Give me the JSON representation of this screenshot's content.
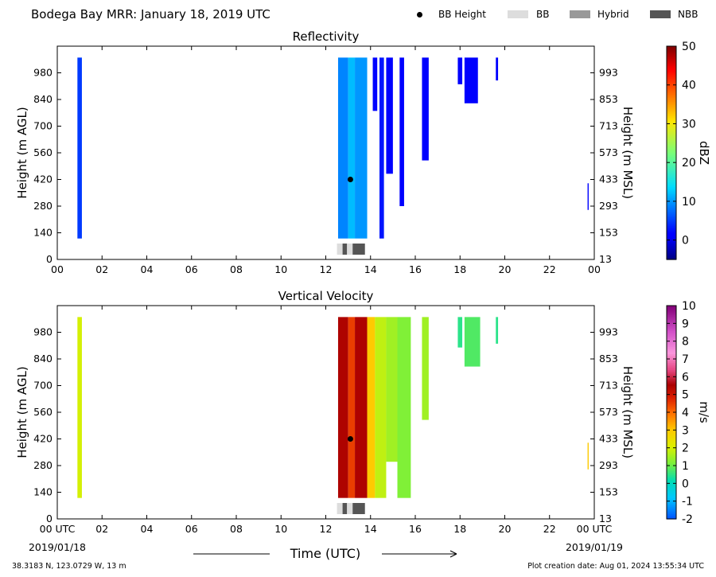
{
  "header": {
    "title": "Bodega Bay MRR:  January 18, 2019 UTC",
    "legend": [
      {
        "label": "BB Height",
        "marker": "dot",
        "color": "#000000"
      },
      {
        "label": "BB",
        "marker": "box",
        "color": "#dddddd"
      },
      {
        "label": "Hybrid",
        "marker": "box",
        "color": "#999999"
      },
      {
        "label": "NBB",
        "marker": "box",
        "color": "#555555"
      }
    ]
  },
  "footer": {
    "location": "38.3183 N, 123.0729 W, 13 m",
    "created": "Plot creation date: Aug 01, 2024 13:55:34 UTC",
    "xlabel": "Time (UTC)",
    "start_date": "2019/01/18",
    "end_date": "2019/01/19"
  },
  "chart_data": [
    {
      "type": "heatmap",
      "title": "Reflectivity",
      "ylabel": "Height (m AGL)",
      "ylabel_right": "Height (m MSL)",
      "xlim": [
        0,
        24
      ],
      "ylim": [
        0,
        1120
      ],
      "xticks": [
        "00",
        "02",
        "04",
        "06",
        "08",
        "10",
        "12",
        "14",
        "16",
        "18",
        "20",
        "22",
        "00"
      ],
      "yticks": [
        0,
        140,
        280,
        420,
        560,
        700,
        840,
        980
      ],
      "yticks_right": [
        13,
        153,
        293,
        433,
        573,
        713,
        853,
        993
      ],
      "colorbar": {
        "label": "dBZ",
        "min": -5,
        "max": 50,
        "ticks": [
          0,
          10,
          20,
          30,
          40,
          50
        ]
      },
      "bb_height": {
        "time": 13.1,
        "height": 420
      },
      "bb_type_bar": [
        {
          "start": 12.5,
          "end": 12.75,
          "type": "BB"
        },
        {
          "start": 12.75,
          "end": 12.95,
          "type": "NBB"
        },
        {
          "start": 12.95,
          "end": 13.2,
          "type": "BB"
        },
        {
          "start": 13.2,
          "end": 13.75,
          "type": "NBB"
        }
      ],
      "columns": [
        {
          "start": 0.9,
          "end": 1.1,
          "bottom": 110,
          "top": 1060,
          "value": 5
        },
        {
          "start": 12.55,
          "end": 13.0,
          "bottom": 110,
          "top": 1060,
          "value": 9
        },
        {
          "start": 13.0,
          "end": 13.3,
          "bottom": 110,
          "top": 1060,
          "value": 12
        },
        {
          "start": 13.3,
          "end": 13.85,
          "bottom": 110,
          "top": 1060,
          "value": 10
        },
        {
          "start": 14.1,
          "end": 14.3,
          "bottom": 780,
          "top": 1060,
          "value": 2
        },
        {
          "start": 14.4,
          "end": 14.6,
          "bottom": 110,
          "top": 1060,
          "value": 3
        },
        {
          "start": 14.7,
          "end": 15.0,
          "bottom": 450,
          "top": 1060,
          "value": 2
        },
        {
          "start": 15.3,
          "end": 15.5,
          "bottom": 280,
          "top": 1060,
          "value": 2
        },
        {
          "start": 16.3,
          "end": 16.6,
          "bottom": 520,
          "top": 1060,
          "value": 1
        },
        {
          "start": 17.9,
          "end": 18.1,
          "bottom": 920,
          "top": 1060,
          "value": 1
        },
        {
          "start": 18.2,
          "end": 18.8,
          "bottom": 820,
          "top": 1060,
          "value": 1
        },
        {
          "start": 19.6,
          "end": 19.7,
          "bottom": 940,
          "top": 1060,
          "value": 1
        },
        {
          "start": 23.7,
          "end": 23.75,
          "bottom": 260,
          "top": 400,
          "value": 2
        }
      ]
    },
    {
      "type": "heatmap",
      "title": "Vertical Velocity",
      "ylabel": "Height (m AGL)",
      "ylabel_right": "Height (m MSL)",
      "xlim": [
        0,
        24
      ],
      "ylim": [
        0,
        1120
      ],
      "xticks": [
        "00 UTC",
        "02",
        "04",
        "06",
        "08",
        "10",
        "12",
        "14",
        "16",
        "18",
        "20",
        "22",
        "00 UTC"
      ],
      "yticks": [
        0,
        140,
        280,
        420,
        560,
        700,
        840,
        980
      ],
      "yticks_right": [
        13,
        153,
        293,
        433,
        573,
        713,
        853,
        993
      ],
      "colorbar": {
        "label": "m/s",
        "min": -2,
        "max": 10,
        "ticks": [
          -2,
          -1,
          0,
          1,
          2,
          3,
          4,
          5,
          6,
          7,
          8,
          9,
          10
        ]
      },
      "bb_height": {
        "time": 13.1,
        "height": 420
      },
      "bb_type_bar": [
        {
          "start": 12.5,
          "end": 12.75,
          "type": "BB"
        },
        {
          "start": 12.75,
          "end": 12.95,
          "type": "NBB"
        },
        {
          "start": 12.95,
          "end": 13.2,
          "type": "BB"
        },
        {
          "start": 13.2,
          "end": 13.75,
          "type": "NBB"
        }
      ],
      "columns": [
        {
          "start": 0.9,
          "end": 1.1,
          "bottom": 110,
          "top": 1060,
          "value": 2
        },
        {
          "start": 12.55,
          "end": 13.0,
          "bottom": 110,
          "top": 1060,
          "value": 5.5
        },
        {
          "start": 13.0,
          "end": 13.3,
          "bottom": 110,
          "top": 1060,
          "value": 4.5
        },
        {
          "start": 13.3,
          "end": 13.85,
          "bottom": 110,
          "top": 1060,
          "value": 5.5
        },
        {
          "start": 13.85,
          "end": 14.2,
          "bottom": 110,
          "top": 1060,
          "value": 3
        },
        {
          "start": 14.2,
          "end": 14.7,
          "bottom": 110,
          "top": 1060,
          "value": 1.8
        },
        {
          "start": 14.7,
          "end": 15.2,
          "bottom": 300,
          "top": 1060,
          "value": 1.5
        },
        {
          "start": 15.2,
          "end": 15.8,
          "bottom": 110,
          "top": 1060,
          "value": 1.2
        },
        {
          "start": 16.3,
          "end": 16.6,
          "bottom": 520,
          "top": 1060,
          "value": 1.5
        },
        {
          "start": 17.9,
          "end": 18.1,
          "bottom": 900,
          "top": 1060,
          "value": 0.5
        },
        {
          "start": 18.2,
          "end": 18.9,
          "bottom": 800,
          "top": 1060,
          "value": 0.8
        },
        {
          "start": 19.6,
          "end": 19.7,
          "bottom": 920,
          "top": 1060,
          "value": 0.5
        },
        {
          "start": 23.7,
          "end": 23.75,
          "bottom": 260,
          "top": 400,
          "value": 3
        }
      ]
    }
  ]
}
